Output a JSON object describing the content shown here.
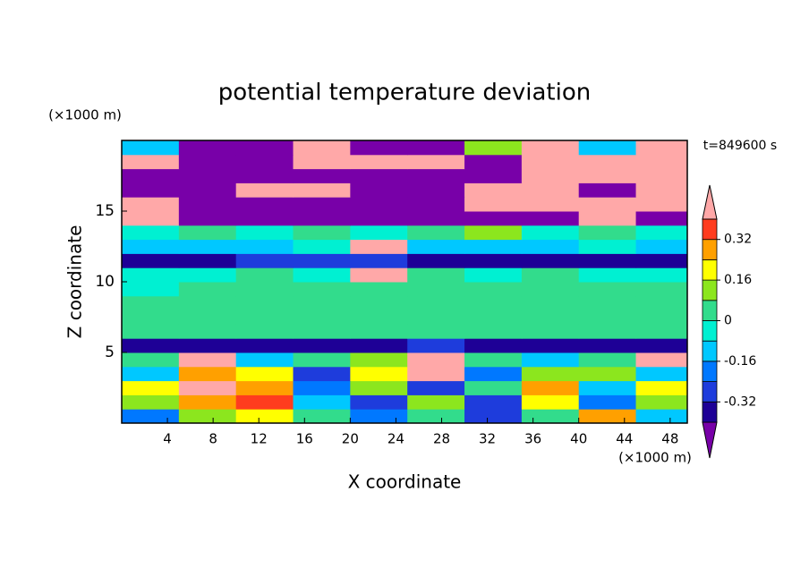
{
  "chart_data": {
    "type": "contour",
    "title": "potential temperature deviation",
    "time_label": "t=849600 s",
    "xlabel": "X coordinate",
    "ylabel": "Z coordinate",
    "xunit": "(×1000 m)",
    "yunit": "(×1000 m)",
    "xlim": [
      0,
      49.5
    ],
    "ylim": [
      0,
      20
    ],
    "xticks": [
      4,
      8,
      12,
      16,
      20,
      24,
      28,
      32,
      36,
      40,
      44,
      48
    ],
    "yticks": [
      5,
      10,
      15
    ],
    "x": [
      2.5,
      7.5,
      12.5,
      17.5,
      22.5,
      27.5,
      32.5,
      37.5,
      42.5,
      47.5
    ],
    "y": [
      0.5,
      1.5,
      2.5,
      3.5,
      4.5,
      5.5,
      6.5,
      7.5,
      8.5,
      9.5,
      10.5,
      11.5,
      12.5,
      13.5,
      14.5,
      15.5,
      16.5,
      17.5,
      18.5,
      19.5
    ],
    "z": [
      [
        -0.2,
        0.1,
        0.2,
        0,
        -0.2,
        0.05,
        -0.25,
        0,
        0.3,
        -0.1
      ],
      [
        0.15,
        0.3,
        0.35,
        -0.1,
        -0.3,
        0.1,
        -0.3,
        0.2,
        -0.2,
        0.1
      ],
      [
        0.2,
        0.45,
        0.3,
        -0.2,
        0.1,
        -0.3,
        0,
        0.25,
        -0.1,
        0.2
      ],
      [
        -0.1,
        0.3,
        0.2,
        -0.3,
        0.2,
        0.45,
        -0.2,
        0.1,
        0.15,
        -0.1
      ],
      [
        0.05,
        0.45,
        -0.1,
        0,
        0.1,
        0.45,
        0.05,
        -0.1,
        0,
        0.45
      ],
      [
        -0.35,
        -0.35,
        -0.35,
        -0.35,
        -0.35,
        -0.3,
        -0.35,
        -0.35,
        -0.35,
        -0.35
      ],
      [
        0.04,
        0.02,
        0.06,
        0.02,
        0.04,
        0.02,
        0.06,
        0.04,
        0.02,
        0.04
      ],
      [
        0.06,
        0.04,
        0.02,
        0.06,
        0.04,
        0.06,
        0.02,
        0.04,
        0.06,
        0.02
      ],
      [
        0.02,
        0.06,
        0.04,
        0.02,
        0.06,
        0.04,
        0.06,
        0.02,
        0.04,
        0.06
      ],
      [
        -0.02,
        0.02,
        0.04,
        0.02,
        0.06,
        0.02,
        0.04,
        0.06,
        0.02,
        0.04
      ],
      [
        -0.05,
        -0.02,
        0.02,
        -0.05,
        0.45,
        0.02,
        -0.02,
        0.02,
        -0.05,
        -0.02
      ],
      [
        -0.35,
        -0.35,
        -0.3,
        -0.3,
        -0.3,
        -0.35,
        -0.35,
        -0.35,
        -0.35,
        -0.35
      ],
      [
        -0.1,
        -0.12,
        -0.1,
        -0.05,
        0.45,
        -0.1,
        -0.12,
        -0.1,
        -0.05,
        -0.1
      ],
      [
        -0.02,
        0.02,
        -0.02,
        0.02,
        -0.05,
        0.02,
        0.1,
        -0.05,
        0.02,
        -0.02
      ],
      [
        0.45,
        -0.45,
        -0.45,
        -0.45,
        -0.45,
        -0.45,
        -0.45,
        -0.45,
        0.45,
        -0.45
      ],
      [
        0.45,
        -0.45,
        -0.45,
        -0.45,
        -0.45,
        -0.45,
        0.45,
        0.45,
        0.45,
        0.45
      ],
      [
        -0.45,
        -0.45,
        0.45,
        0.45,
        -0.45,
        -0.45,
        0.45,
        0.45,
        -0.45,
        0.45
      ],
      [
        -0.45,
        -0.45,
        -0.45,
        -0.45,
        -0.45,
        -0.45,
        -0.45,
        0.45,
        0.45,
        0.45
      ],
      [
        0.45,
        -0.45,
        -0.45,
        0.45,
        0.45,
        0.45,
        -0.45,
        0.45,
        0.45,
        0.45
      ],
      [
        -0.1,
        -0.45,
        -0.45,
        0.45,
        -0.45,
        -0.45,
        0.1,
        0.45,
        -0.1,
        0.45
      ]
    ],
    "levels": [
      -0.4,
      -0.32,
      -0.24,
      -0.16,
      -0.08,
      0,
      0.08,
      0.16,
      0.24,
      0.32,
      0.4
    ],
    "colors": [
      "#7800a8",
      "#1e0096",
      "#1e3cdc",
      "#0078ff",
      "#00c8ff",
      "#00f0d2",
      "#32dc8c",
      "#8ce61e",
      "#ffff00",
      "#ffa000",
      "#ff3c1e",
      "#ffa8a8"
    ],
    "cbarticks": [
      -0.32,
      -0.16,
      0,
      0.16,
      0.32
    ]
  }
}
